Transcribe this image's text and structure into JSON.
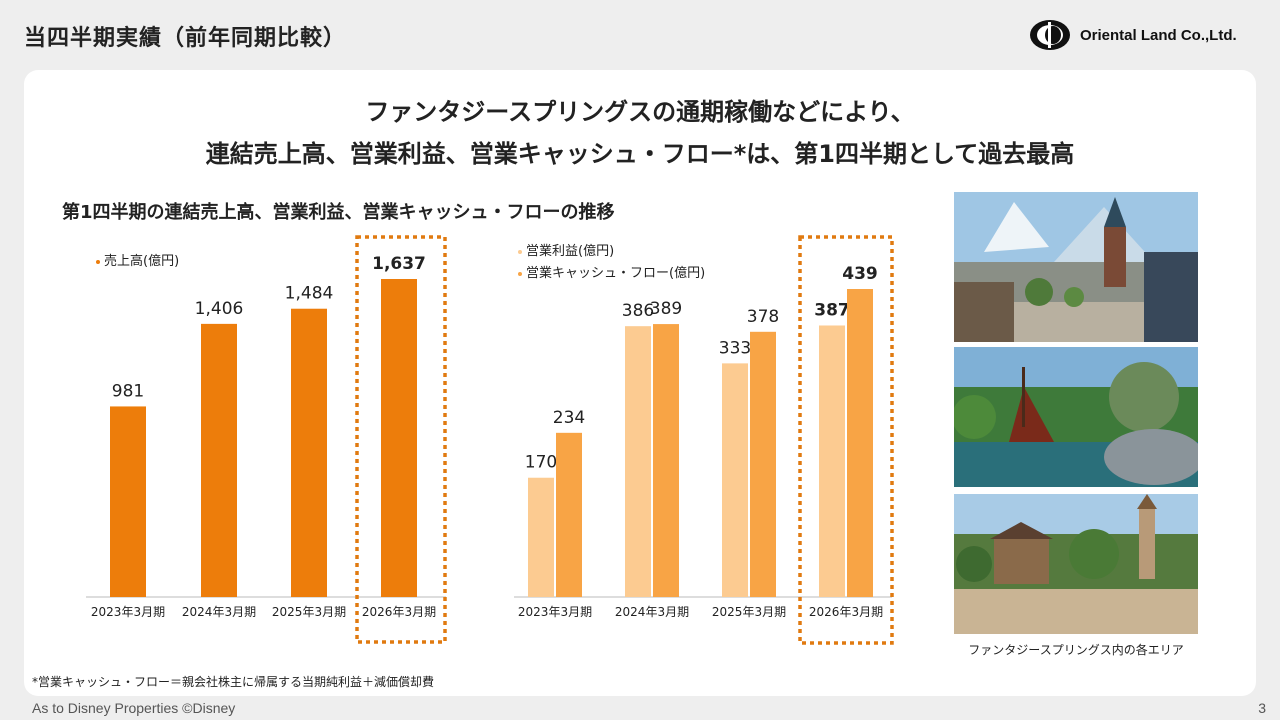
{
  "page_title": "当四半期実績（前年同期比較）",
  "logo_text": "Oriental Land Co.,Ltd.",
  "headline": {
    "line1": "ファンタジースプリングスの通期稼働などにより、",
    "line2": "連結売上高、営業利益、営業キャッシュ・フロー*は、第1四半期として過去最高"
  },
  "subhead": "第1四半期の連結売上高、営業利益、営業キャッシュ・フローの推移",
  "chart_data": [
    {
      "type": "bar",
      "categories": [
        "2023年3月期",
        "2024年3月期",
        "2025年3月期",
        "2026年3月期"
      ],
      "series": [
        {
          "name": "売上高(億円)",
          "values": [
            981,
            1406,
            1484,
            1637
          ],
          "color": "#ED7D0B"
        }
      ],
      "ylim": [
        0,
        1900
      ],
      "highlight_category": "2026年3月期",
      "legend_position": "top-left"
    },
    {
      "type": "bar",
      "categories": [
        "2023年3月期",
        "2024年3月期",
        "2025年3月期",
        "2026年3月期"
      ],
      "series": [
        {
          "name": "営業利益(億円)",
          "values": [
            170,
            386,
            333,
            387
          ],
          "color": "#FCCB91"
        },
        {
          "name": "営業キャッシュ・フロー(億円)",
          "values": [
            234,
            389,
            378,
            439
          ],
          "color": "#F8A445"
        }
      ],
      "ylim": [
        0,
        500
      ],
      "highlight_category": "2026年3月期",
      "legend_position": "top-left"
    }
  ],
  "photo_caption": "ファンタジースプリングス内の各エリア",
  "footnote": "*営業キャッシュ・フロー＝親会社株主に帰属する当期純利益＋減価償却費",
  "copyright": "As to Disney Properties ©Disney",
  "page_number": "3",
  "colors": {
    "highlight_border": "#E07A10",
    "axis": "#bbbbbb"
  }
}
